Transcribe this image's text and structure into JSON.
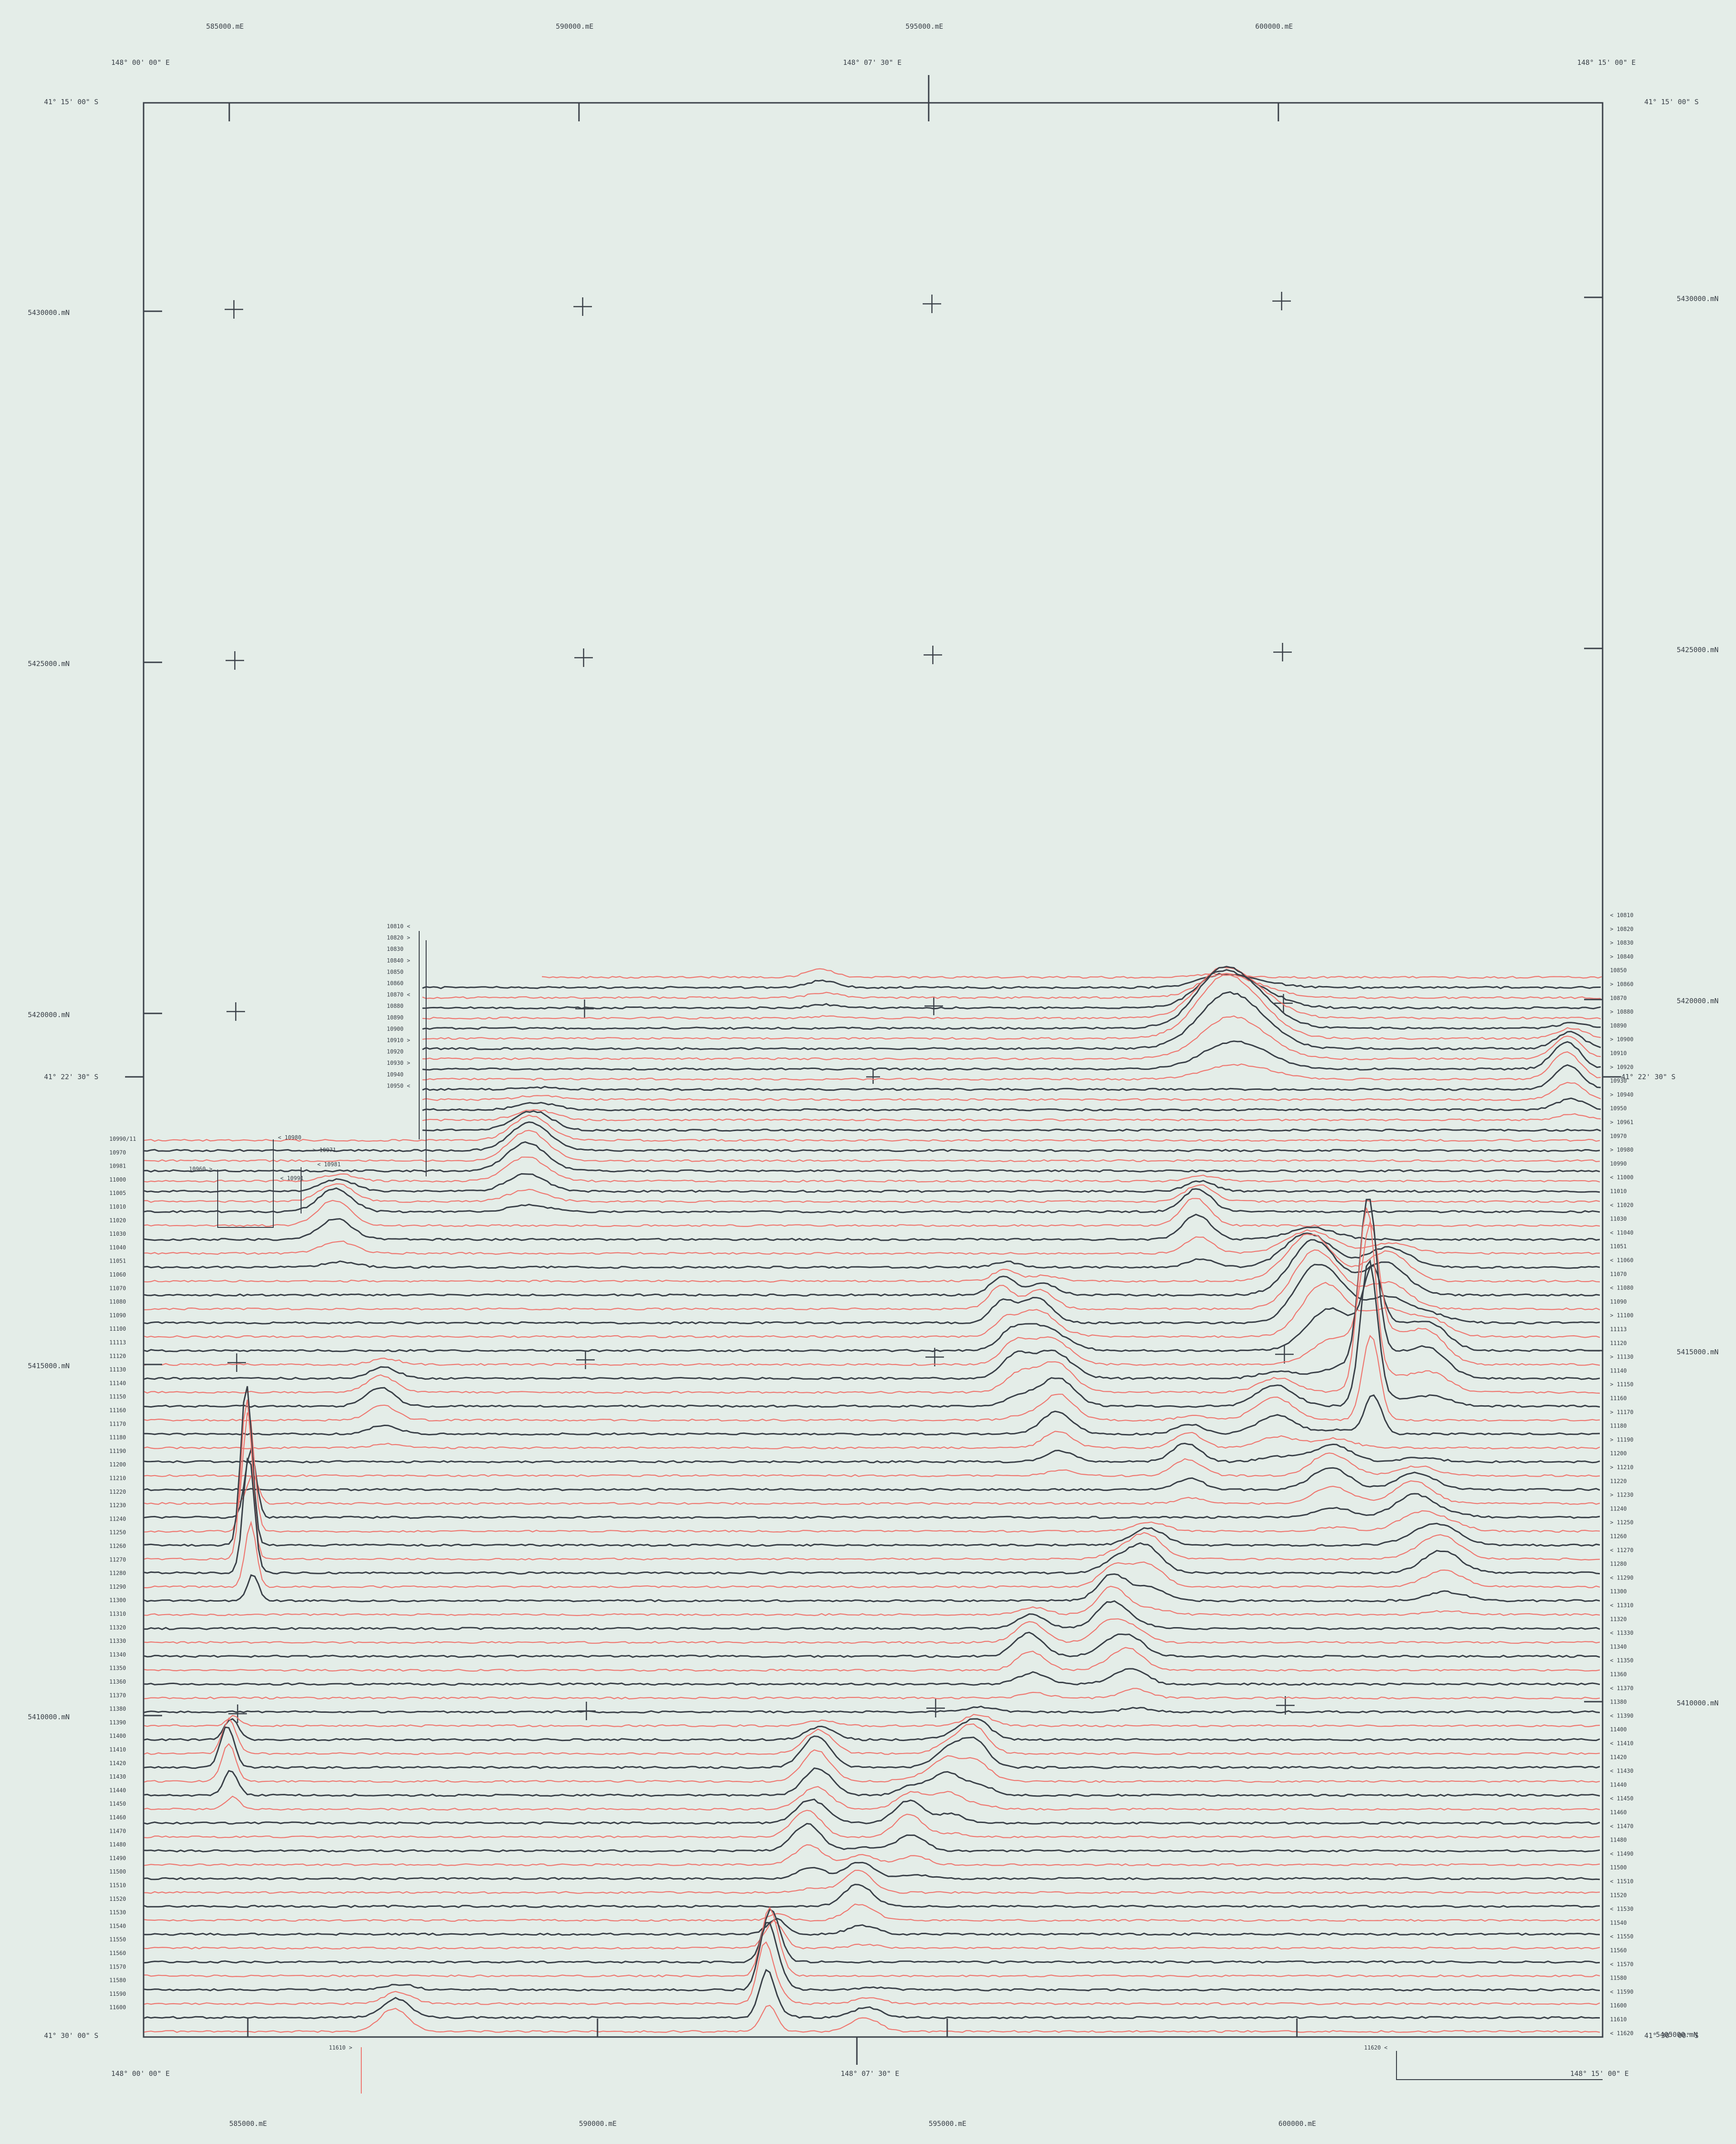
{
  "colors": {
    "background": "#e4ede8",
    "frame": "#3a4048",
    "profile_dark": "#3a4048",
    "profile_red": "#ee7770"
  },
  "top_eastings": [
    "585000.mE",
    "590000.mE",
    "595000.mE",
    "600000.mE"
  ],
  "bottom_eastings": [
    "585000.mE",
    "590000.mE",
    "595000.mE",
    "600000.mE"
  ],
  "left_northings": [
    "5430000.mN",
    "5425000.mN",
    "5420000.mN",
    "5415000.mN",
    "5410000.mN"
  ],
  "right_northings": [
    "5430000.mN",
    "5425000.mN",
    "5420000.mN",
    "5415000.mN",
    "5410000.mN",
    "5405000.mN"
  ],
  "lon_labels": {
    "top_left": "148° 00' 00\" E",
    "top_mid": "148° 07' 30\" E",
    "top_right": "148° 15' 00\" E",
    "bottom_left": "148° 00' 00\" E",
    "bottom_mid": "148° 07' 30\" E",
    "bottom_right": "148° 15' 00\" E"
  },
  "lat_labels": {
    "top_left": "41° 15' 00\" S",
    "top_right": "41° 15' 00\" S",
    "mid_left": "41° 22' 30\" S",
    "mid_right": "41° 22' 30\" S",
    "bottom_left": "41° 30' 00\" S",
    "bottom_right": "41° 30' 00\" S"
  },
  "left_line_labels": [
    "10990/11",
    "10970",
    "10981",
    "11000",
    "11005",
    "11010",
    "11020",
    "11030",
    "11040",
    "11051",
    "11060",
    "11070",
    "11080",
    "11090",
    "11100",
    "11113",
    "11120",
    "11130",
    "11140",
    "11150",
    "11160",
    "11170",
    "11180",
    "11190",
    "11200",
    "11210",
    "11220",
    "11230",
    "11240",
    "11250",
    "11260",
    "11270",
    "11280",
    "11290",
    "11300",
    "11310",
    "11320",
    "11330",
    "11340",
    "11350",
    "11360",
    "11370",
    "11380",
    "11390",
    "11400",
    "11410",
    "11420",
    "11430",
    "11440",
    "11450",
    "11460",
    "11470",
    "11480",
    "11490",
    "11500",
    "11510",
    "11520",
    "11530",
    "11540",
    "11550",
    "11560",
    "11570",
    "11580",
    "11590",
    "11600"
  ],
  "right_line_labels": [
    "< 10810",
    "> 10820",
    "> 10830",
    "> 10840",
    "10850",
    "> 10860",
    "10870",
    "> 10880",
    "10890",
    "> 10900",
    "10910",
    "> 10920",
    "10930",
    "> 10940",
    "10950",
    "> 10961",
    "10970",
    "> 10980",
    "10990",
    "< 11000",
    "11010",
    "< 11020",
    "11030",
    "< 11040",
    "11051",
    "< 11060",
    "11070",
    "< 11080",
    "11090",
    "> 11100",
    "11113",
    "11120",
    "> 11130",
    "11140",
    "> 11150",
    "11160",
    "> 11170",
    "11180",
    "> 11190",
    "11200",
    "> 11210",
    "11220",
    "> 11230",
    "11240",
    "> 11250",
    "11260",
    "< 11270",
    "11280",
    "< 11290",
    "11300",
    "< 11310",
    "11320",
    "< 11330",
    "11340",
    "< 11350",
    "11360",
    "< 11370",
    "11380",
    "< 11390",
    "11400",
    "< 11410",
    "11420",
    "< 11430",
    "11440",
    "< 11450",
    "11460",
    "< 11470",
    "11480",
    "< 11490",
    "11500",
    "< 11510",
    "11520",
    "< 11530",
    "11540",
    "< 11550",
    "11560",
    "< 11570",
    "11580",
    "< 11590",
    "11600",
    "11610",
    "< 11620"
  ],
  "upper_line_labels": [
    "10810 <",
    "10820 >",
    "10830",
    "10840 >",
    "10850",
    "10860",
    "10870 <",
    "10880",
    "10890",
    "10900",
    "10910 >",
    "10920",
    "10930 >",
    "10940",
    "10950 <"
  ],
  "callout_labels": [
    "< 10980",
    "> 10971",
    "< 10981",
    "10960 >",
    "< 10991",
    "11610 >",
    "11620 <"
  ]
}
